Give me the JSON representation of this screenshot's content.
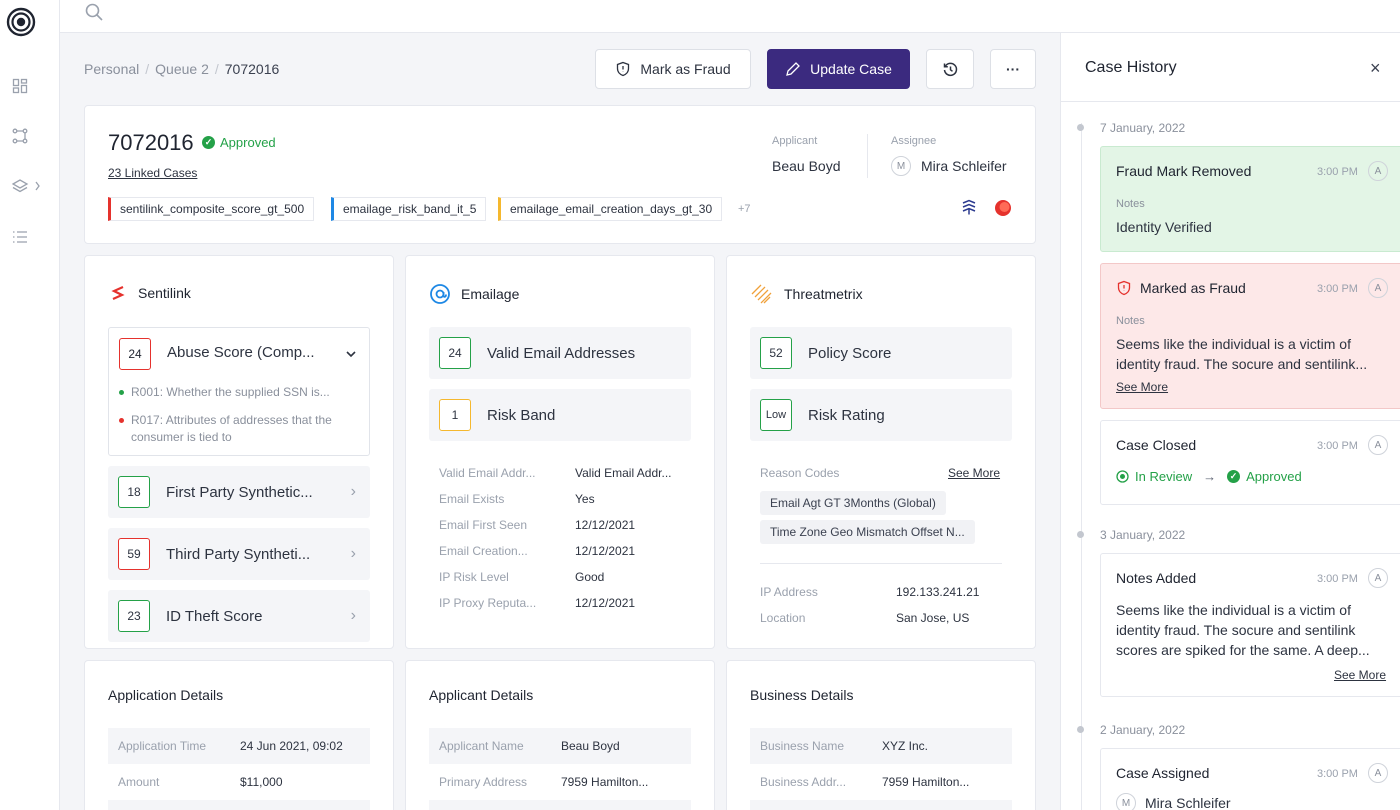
{
  "breadcrumb": {
    "items": [
      "Personal",
      "Queue 2",
      "7072016"
    ]
  },
  "toolbar": {
    "mark_fraud": "Mark as Fraud",
    "update_case": "Update Case",
    "more": "···"
  },
  "case": {
    "id": "7072016",
    "status": "Approved",
    "linked": "23 Linked Cases",
    "tags": [
      {
        "label": "sentilink_composite_score_gt_500",
        "color": "#e5322d"
      },
      {
        "label": "emailage_risk_band_it_5",
        "color": "#1e88e5"
      },
      {
        "label": "emailage_email_creation_days_gt_30",
        "color": "#f5b82e"
      }
    ],
    "more_tags": "+7",
    "applicant_label": "Applicant",
    "applicant": "Beau Boyd",
    "assignee_label": "Assignee",
    "assignee_initial": "M",
    "assignee": "Mira Schleifer"
  },
  "sentilink": {
    "title": "Sentilink",
    "expanded": {
      "score": "24",
      "label": "Abuse Score (Comp...",
      "color": "#e5322d",
      "rules": [
        {
          "text": "R001: Whether the supplied SSN is...",
          "color": "#24a148"
        },
        {
          "text": "R017: Attributes of addresses that the consumer is tied to",
          "color": "#e5322d"
        }
      ]
    },
    "rows": [
      {
        "score": "18",
        "label": "First Party Synthetic...",
        "color": "#24a148"
      },
      {
        "score": "59",
        "label": "Third Party Syntheti...",
        "color": "#e5322d"
      },
      {
        "score": "23",
        "label": "ID Theft Score",
        "color": "#24a148"
      }
    ]
  },
  "emailage": {
    "title": "Emailage",
    "scores": [
      {
        "score": "24",
        "label": "Valid Email Addresses",
        "color": "#24a148"
      },
      {
        "score": "1",
        "label": "Risk Band",
        "color": "#f5b82e"
      }
    ],
    "details": [
      {
        "k": "Valid Email Addr...",
        "v": "Valid Email Addr..."
      },
      {
        "k": "Email Exists",
        "v": "Yes"
      },
      {
        "k": "Email First Seen",
        "v": "12/12/2021"
      },
      {
        "k": "Email Creation...",
        "v": "12/12/2021"
      },
      {
        "k": "IP Risk Level",
        "v": "Good"
      },
      {
        "k": "IP Proxy Reputa...",
        "v": "12/12/2021"
      }
    ]
  },
  "threatmetrix": {
    "title": "Threatmetrix",
    "scores": [
      {
        "score": "52",
        "label": "Policy Score",
        "color": "#24a148"
      },
      {
        "score": "Low",
        "label": "Risk Rating",
        "color": "#24a148"
      }
    ],
    "reason_label": "Reason Codes",
    "see_more": "See More",
    "reasons": [
      "Email Agt GT 3Months (Global)",
      "Time Zone Geo Mismatch Offset N..."
    ],
    "details": [
      {
        "k": "IP Address",
        "v": "192.133.241.21"
      },
      {
        "k": "Location",
        "v": "San Jose, US"
      }
    ]
  },
  "application": {
    "title": "Application Details",
    "rows": [
      {
        "k": "Application Time",
        "v": "24 Jun 2021, 09:02"
      },
      {
        "k": "Amount",
        "v": "$11,000"
      }
    ]
  },
  "applicant_details": {
    "title": "Applicant Details",
    "rows": [
      {
        "k": "Applicant Name",
        "v": "Beau Boyd"
      },
      {
        "k": "Primary Address",
        "v": "7959 Hamilton..."
      }
    ]
  },
  "business": {
    "title": "Business Details",
    "rows": [
      {
        "k": "Business Name",
        "v": "XYZ Inc."
      },
      {
        "k": "Business Addr...",
        "v": "7959 Hamilton..."
      }
    ]
  },
  "history": {
    "title": "Case History",
    "close": "×",
    "dates": [
      "7 January, 2022",
      "3 January, 2022",
      "2 January, 2022"
    ],
    "e1": {
      "title": "Fraud Mark Removed",
      "time": "3:00 PM",
      "av": "A",
      "notes_label": "Notes",
      "notes": "Identity Verified"
    },
    "e2": {
      "title": "Marked as Fraud",
      "time": "3:00 PM",
      "av": "A",
      "notes_label": "Notes",
      "notes": "Seems like the individual is a victim of identity fraud. The socure and sentilink...",
      "link": "See More"
    },
    "e3": {
      "title": "Case Closed",
      "time": "3:00 PM",
      "av": "A",
      "from": "In Review",
      "arrow": "→",
      "to": "Approved"
    },
    "e4": {
      "title": "Notes Added",
      "time": "3:00 PM",
      "av": "A",
      "notes": "Seems like the individual is a victim of identity fraud. The socure and sentilink scores are spiked for the same. A deep...",
      "link": "See More"
    },
    "e5": {
      "title": "Case Assigned",
      "time": "3:00 PM",
      "av": "A",
      "assignee_initial": "M",
      "assignee": "Mira Schleifer"
    }
  }
}
